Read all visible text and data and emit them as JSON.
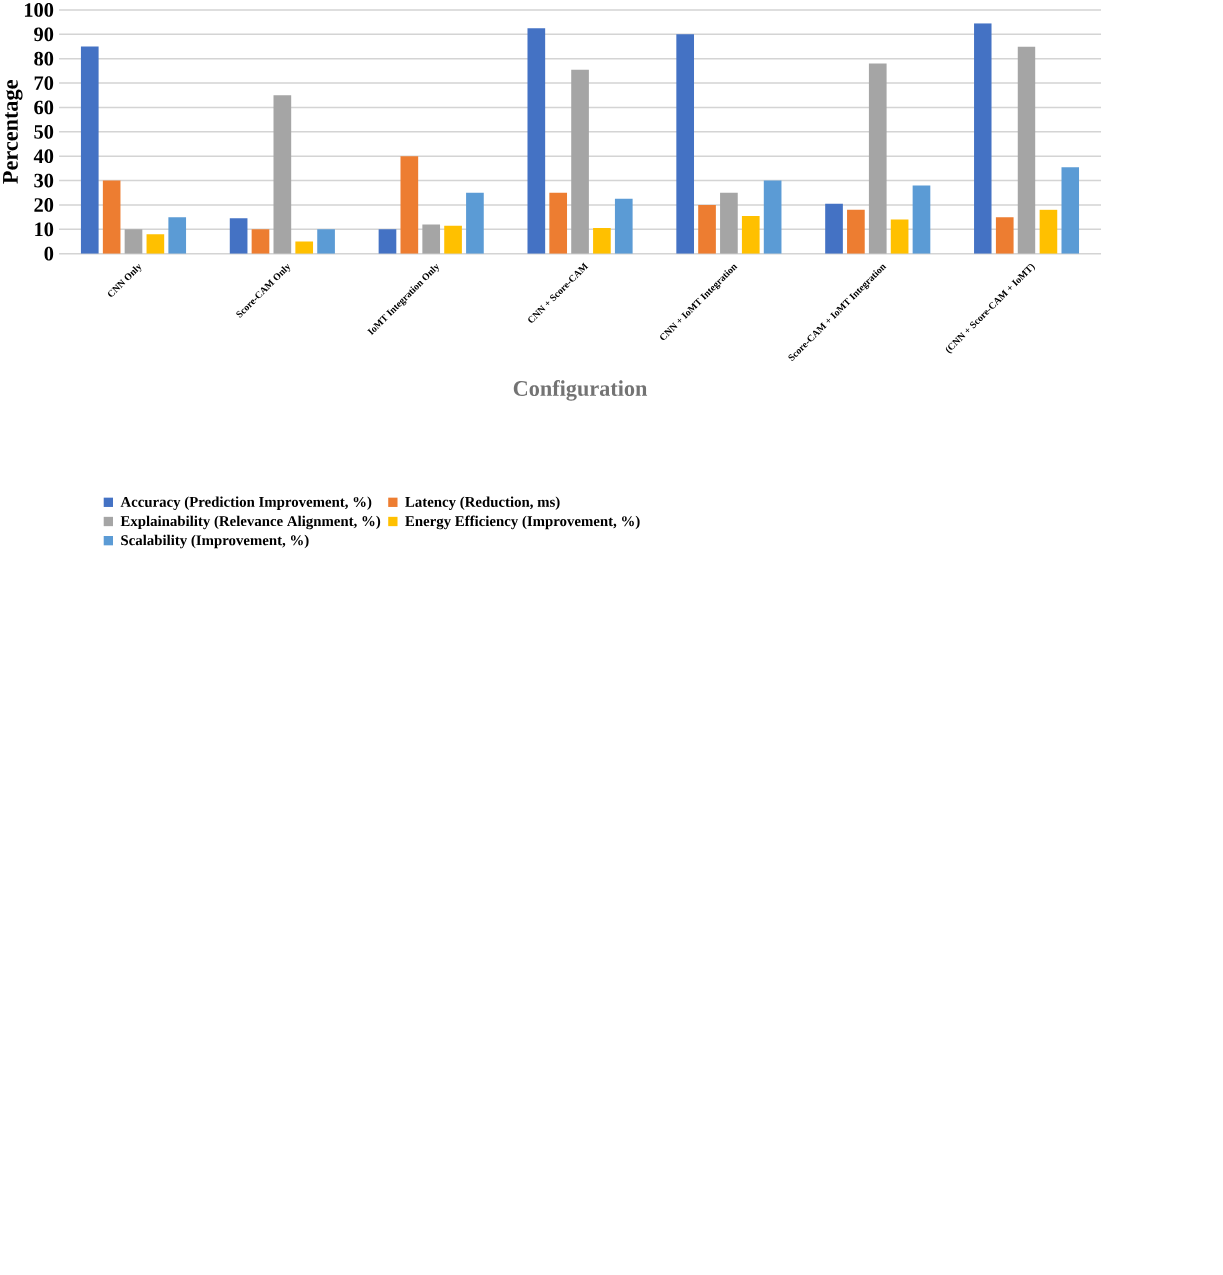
{
  "chart_data": {
    "type": "bar",
    "xlabel": "Configuration",
    "ylabel": "Percentage",
    "categories": [
      "CNN Only",
      "Score-CAM Only",
      "IoMT Integration Only",
      "CNN + Score-CAM",
      "CNN + IoMT Integration",
      "Score-CAM + IoMT Integration",
      "(CNN + Score-CAM + IoMT)"
    ],
    "series": [
      {
        "name": "Accuracy (Prediction Improvement, %)",
        "color": "#4472c4",
        "values": [
          85,
          14.5,
          10,
          92.5,
          90,
          20.5,
          94.5
        ]
      },
      {
        "name": "Latency (Reduction, ms)",
        "color": "#ed7d31",
        "values": [
          30,
          10,
          40,
          25,
          20,
          18,
          15
        ]
      },
      {
        "name": "Explainability (Relevance Alignment, %)",
        "color": "#a5a5a5",
        "values": [
          10,
          65,
          12,
          75.5,
          25,
          78,
          85
        ]
      },
      {
        "name": "Energy Efficiency (Improvement, %)",
        "color": "#ffc000",
        "values": [
          8,
          5,
          11.5,
          10.5,
          15.5,
          14,
          18
        ]
      },
      {
        "name": "Scalability (Improvement, %)",
        "color": "#5b9bd5",
        "values": [
          15,
          10,
          25,
          22.5,
          30,
          28,
          35.5
        ]
      }
    ],
    "ylim": [
      0,
      100
    ],
    "yticks": [
      0,
      10,
      20,
      30,
      40,
      50,
      60,
      70,
      80,
      90,
      100
    ],
    "grid": "y",
    "legend": "bottom"
  }
}
